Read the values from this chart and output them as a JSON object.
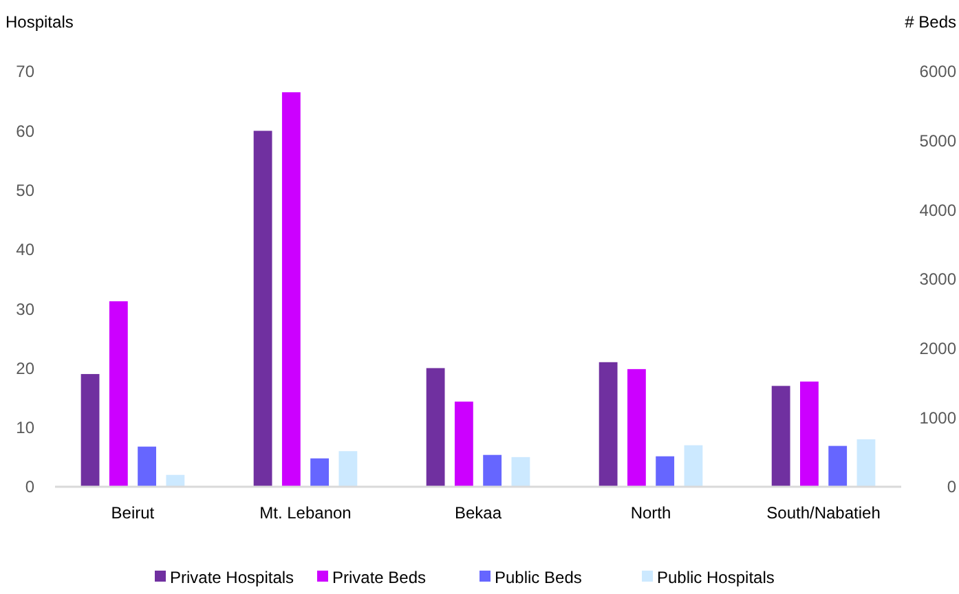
{
  "chart_data": {
    "type": "bar",
    "ylabel": "Hospitals",
    "y2label": "# Beds",
    "categories": [
      "Beirut",
      "Mt. Lebanon",
      "Bekaa",
      "North",
      "South/Nabatieh"
    ],
    "series": [
      {
        "name": "Private Hospitals",
        "color": "#7030a0",
        "values": [
          19,
          60,
          20,
          21,
          17
        ]
      },
      {
        "name": "Private Beds",
        "color": "#cc00ff",
        "axis": "y2",
        "values": [
          2680,
          5700,
          1230,
          1700,
          1520
        ]
      },
      {
        "name": "Public Beds",
        "color": "#6666ff",
        "axis": "y2",
        "values": [
          580,
          410,
          460,
          440,
          590
        ]
      },
      {
        "name": "Public Hospitals",
        "color": "#cce9ff",
        "values": [
          2,
          6,
          5,
          7,
          8
        ]
      }
    ],
    "ylim": [
      0,
      70
    ],
    "yticks": [
      0,
      10,
      20,
      30,
      40,
      50,
      60,
      70
    ],
    "y2lim": [
      0,
      6000
    ],
    "y2ticks": [
      0,
      1000,
      2000,
      3000,
      4000,
      5000,
      6000
    ],
    "grid": false,
    "legend": "bottom"
  }
}
